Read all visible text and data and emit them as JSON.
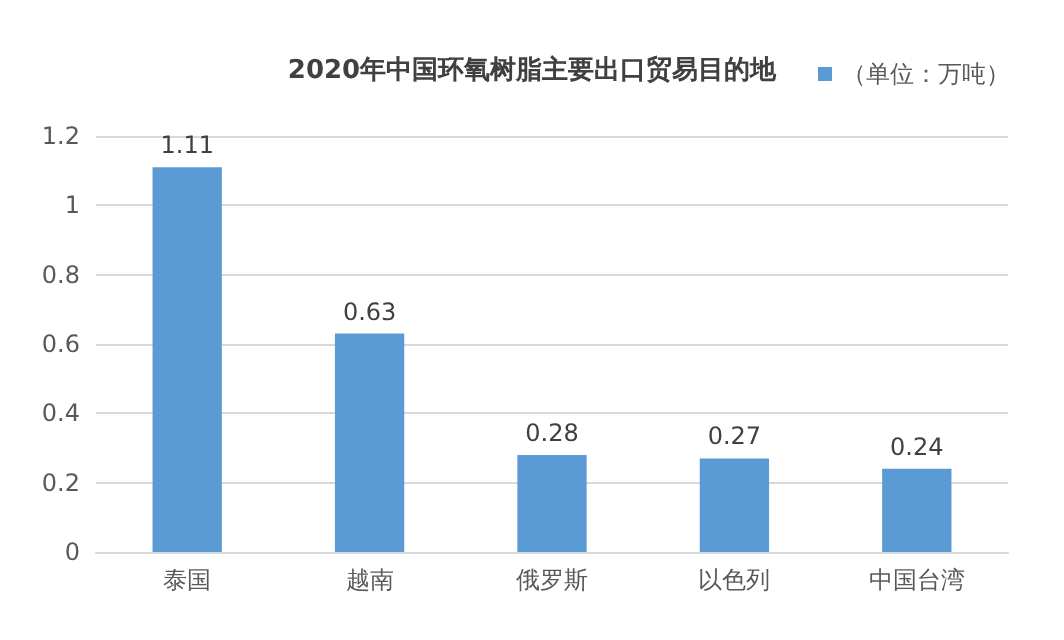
{
  "chart_data": {
    "type": "bar",
    "title": "2020年中国环氧树脂主要出口贸易目的地",
    "categories": [
      "泰国",
      "越南",
      "俄罗斯",
      "以色列",
      "中国台湾"
    ],
    "series": [
      {
        "name": "（单位：万吨）",
        "color": "#5b9bd5",
        "values": [
          1.11,
          0.63,
          0.28,
          0.27,
          0.24
        ]
      }
    ],
    "ylim": [
      0,
      1.2
    ],
    "yticks": [
      0,
      0.2,
      0.4,
      0.6,
      0.8,
      1,
      1.2
    ],
    "grid": "y",
    "legend": "top right",
    "data_labels": true
  }
}
